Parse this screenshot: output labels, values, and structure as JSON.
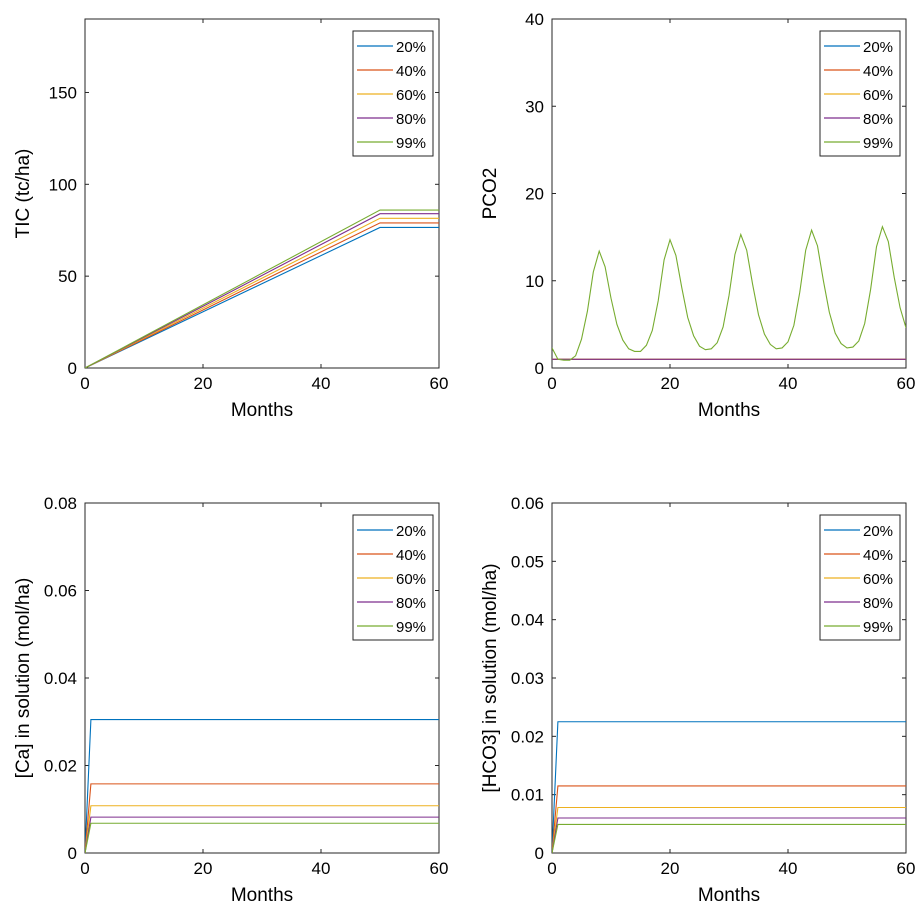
{
  "colors": {
    "20%": "#0072BD",
    "40%": "#D95319",
    "60%": "#EDB120",
    "80%": "#7E2F8E",
    "99%": "#77AC30"
  },
  "chart_data": [
    {
      "type": "line",
      "xlabel": "Months",
      "ylabel": "TIC (tc/ha)",
      "xlim": [
        0,
        60
      ],
      "ylim": [
        0,
        190
      ],
      "xticks": [
        0,
        20,
        40,
        60
      ],
      "yticks": [
        0,
        50,
        100,
        150
      ],
      "ytick_labels": [
        "0",
        "50",
        "100",
        "150"
      ],
      "legend_placement": "top-right",
      "series": [
        {
          "name": "20%",
          "x": [
            0,
            50,
            60
          ],
          "y": [
            0,
            76.5,
            76.5
          ]
        },
        {
          "name": "40%",
          "x": [
            0,
            50,
            60
          ],
          "y": [
            0,
            79,
            79
          ]
        },
        {
          "name": "60%",
          "x": [
            0,
            50,
            60
          ],
          "y": [
            0,
            81.5,
            81.5
          ]
        },
        {
          "name": "80%",
          "x": [
            0,
            50,
            60
          ],
          "y": [
            0,
            84,
            84
          ]
        },
        {
          "name": "99%",
          "x": [
            0,
            50,
            60
          ],
          "y": [
            0,
            86,
            86
          ]
        }
      ]
    },
    {
      "type": "line",
      "xlabel": "Months",
      "ylabel": "PCO2",
      "xlim": [
        0,
        60
      ],
      "ylim": [
        0,
        40
      ],
      "xticks": [
        0,
        20,
        40,
        60
      ],
      "yticks": [
        0,
        10,
        20,
        30,
        40
      ],
      "ytick_labels": [
        "0",
        "10",
        "20",
        "30",
        "40"
      ],
      "legend_placement": "top-right",
      "series": [
        {
          "name": "20%",
          "x": [
            0,
            60
          ],
          "y": [
            1,
            1
          ]
        },
        {
          "name": "40%",
          "x": [
            0,
            60
          ],
          "y": [
            1,
            1
          ]
        },
        {
          "name": "60%",
          "x": [
            0,
            60
          ],
          "y": [
            1,
            1
          ]
        },
        {
          "name": "80%",
          "x": [
            0,
            60
          ],
          "y": [
            1,
            1
          ]
        },
        {
          "name": "99%",
          "x": [
            0,
            1,
            2,
            3,
            4,
            5,
            6,
            7,
            8,
            9,
            10,
            11,
            12,
            13,
            14,
            15,
            16,
            17,
            18,
            19,
            20,
            21,
            22,
            23,
            24,
            25,
            26,
            27,
            28,
            29,
            30,
            31,
            32,
            33,
            34,
            35,
            36,
            37,
            38,
            39,
            40,
            41,
            42,
            43,
            44,
            45,
            46,
            47,
            48,
            49,
            50,
            51,
            52,
            53,
            54,
            55,
            56,
            57,
            58,
            59,
            60
          ],
          "y": [
            2.3,
            1.0,
            0.9,
            0.9,
            1.4,
            3.3,
            6.5,
            11.0,
            13.4,
            11.6,
            8.0,
            5.0,
            3.2,
            2.2,
            1.9,
            1.9,
            2.6,
            4.3,
            7.7,
            12.4,
            14.7,
            12.9,
            9.2,
            5.8,
            3.7,
            2.5,
            2.1,
            2.2,
            2.9,
            4.7,
            8.3,
            13.0,
            15.3,
            13.5,
            9.6,
            6.1,
            3.9,
            2.7,
            2.2,
            2.3,
            3.0,
            4.9,
            8.7,
            13.5,
            15.8,
            14.0,
            10.0,
            6.4,
            4.0,
            2.8,
            2.3,
            2.4,
            3.1,
            5.1,
            9.0,
            13.9,
            16.2,
            14.5,
            10.4,
            6.9,
            4.6
          ]
        }
      ]
    },
    {
      "type": "line",
      "xlabel": "Months",
      "ylabel": "[Ca] in solution (mol/ha)",
      "xlim": [
        0,
        60
      ],
      "ylim": [
        0,
        0.08
      ],
      "xticks": [
        0,
        20,
        40,
        60
      ],
      "yticks": [
        0,
        0.02,
        0.04,
        0.06,
        0.08
      ],
      "ytick_labels": [
        "0",
        "0.02",
        "0.04",
        "0.06",
        "0.08"
      ],
      "legend_placement": "top-right",
      "series": [
        {
          "name": "20%",
          "x": [
            0,
            1,
            60
          ],
          "y": [
            0,
            0.0305,
            0.0305
          ]
        },
        {
          "name": "40%",
          "x": [
            0,
            1,
            60
          ],
          "y": [
            0,
            0.0158,
            0.0158
          ]
        },
        {
          "name": "60%",
          "x": [
            0,
            1,
            60
          ],
          "y": [
            0,
            0.0108,
            0.0108
          ]
        },
        {
          "name": "80%",
          "x": [
            0,
            1,
            60
          ],
          "y": [
            0,
            0.0082,
            0.0082
          ]
        },
        {
          "name": "99%",
          "x": [
            0,
            1,
            60
          ],
          "y": [
            0,
            0.0068,
            0.0068
          ]
        }
      ]
    },
    {
      "type": "line",
      "xlabel": "Months",
      "ylabel": "[HCO3] in solution (mol/ha)",
      "xlim": [
        0,
        60
      ],
      "ylim": [
        0,
        0.06
      ],
      "xticks": [
        0,
        20,
        40,
        60
      ],
      "yticks": [
        0,
        0.01,
        0.02,
        0.03,
        0.04,
        0.05,
        0.06
      ],
      "ytick_labels": [
        "0",
        "0.01",
        "0.02",
        "0.03",
        "0.04",
        "0.05",
        "0.06"
      ],
      "legend_placement": "top-right",
      "series": [
        {
          "name": "20%",
          "x": [
            0,
            1,
            60
          ],
          "y": [
            0,
            0.0225,
            0.0225
          ]
        },
        {
          "name": "40%",
          "x": [
            0,
            1,
            60
          ],
          "y": [
            0,
            0.0115,
            0.0115
          ]
        },
        {
          "name": "60%",
          "x": [
            0,
            1,
            60
          ],
          "y": [
            0,
            0.0078,
            0.0078
          ]
        },
        {
          "name": "80%",
          "x": [
            0,
            1,
            60
          ],
          "y": [
            0,
            0.006,
            0.006
          ]
        },
        {
          "name": "99%",
          "x": [
            0,
            1,
            60
          ],
          "y": [
            0,
            0.0049,
            0.0049
          ]
        }
      ]
    }
  ]
}
